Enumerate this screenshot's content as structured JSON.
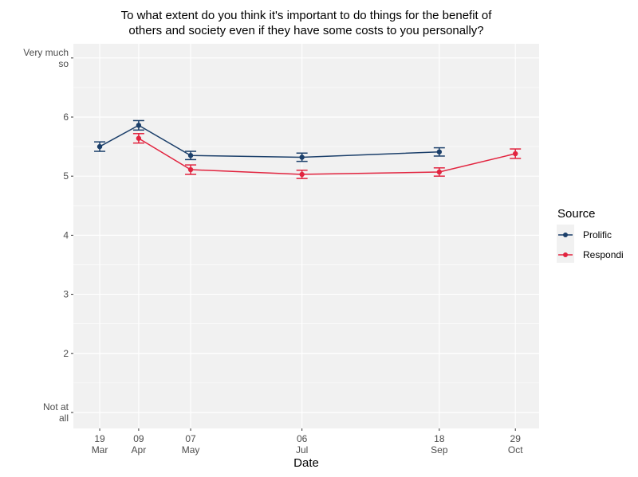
{
  "chart_data": {
    "type": "line",
    "title": "To what extent do you think it's important to do things for the benefit of\nothers and society even if they have some costs to you personally?",
    "title_lines": [
      "To what extent do you think it's important to do things for the benefit of",
      "others and society even if they have some costs to you personally?"
    ],
    "xlabel": "Date",
    "ylabel": "",
    "x_ticks": [
      {
        "day": 0,
        "line1": "19",
        "line2": "Mar"
      },
      {
        "day": 21,
        "line1": "09",
        "line2": "Apr"
      },
      {
        "day": 49,
        "line1": "07",
        "line2": "May"
      },
      {
        "day": 109,
        "line1": "06",
        "line2": "Jul"
      },
      {
        "day": 183,
        "line1": "18",
        "line2": "Sep"
      },
      {
        "day": 224,
        "line1": "29",
        "line2": "Oct"
      }
    ],
    "x_unit": "days since 19 Mar",
    "xlim": [
      -14.2,
      236.8
    ],
    "y_ticks": [
      {
        "value": 1,
        "lines": [
          "Not at",
          "all"
        ]
      },
      {
        "value": 2,
        "lines": [
          "2"
        ]
      },
      {
        "value": 3,
        "lines": [
          "3"
        ]
      },
      {
        "value": 4,
        "lines": [
          "4"
        ]
      },
      {
        "value": 5,
        "lines": [
          "5"
        ]
      },
      {
        "value": 6,
        "lines": [
          "6"
        ]
      },
      {
        "value": 7,
        "lines": [
          "Very much",
          "so"
        ]
      }
    ],
    "ylim": [
      0.73,
      7.24
    ],
    "grid": true,
    "legend": {
      "title": "Source",
      "position": "right"
    },
    "series": [
      {
        "name": "Prolific",
        "color": "#1b3f6a",
        "points": [
          {
            "date": "19 Mar",
            "day": 0,
            "value": 5.5,
            "err": 0.08
          },
          {
            "date": "09 Apr",
            "day": 21,
            "value": 5.86,
            "err": 0.08
          },
          {
            "date": "07 May",
            "day": 49,
            "value": 5.35,
            "err": 0.07
          },
          {
            "date": "06 Jul",
            "day": 109,
            "value": 5.32,
            "err": 0.07
          },
          {
            "date": "18 Sep",
            "day": 183,
            "value": 5.41,
            "err": 0.07
          }
        ]
      },
      {
        "name": "Respondi",
        "color": "#e2243f",
        "points": [
          {
            "date": "09 Apr",
            "day": 21,
            "value": 5.64,
            "err": 0.08
          },
          {
            "date": "07 May",
            "day": 49,
            "value": 5.11,
            "err": 0.08
          },
          {
            "date": "06 Jul",
            "day": 109,
            "value": 5.03,
            "err": 0.07
          },
          {
            "date": "18 Sep",
            "day": 183,
            "value": 5.07,
            "err": 0.07
          },
          {
            "date": "29 Oct",
            "day": 224,
            "value": 5.38,
            "err": 0.08
          }
        ]
      }
    ]
  }
}
